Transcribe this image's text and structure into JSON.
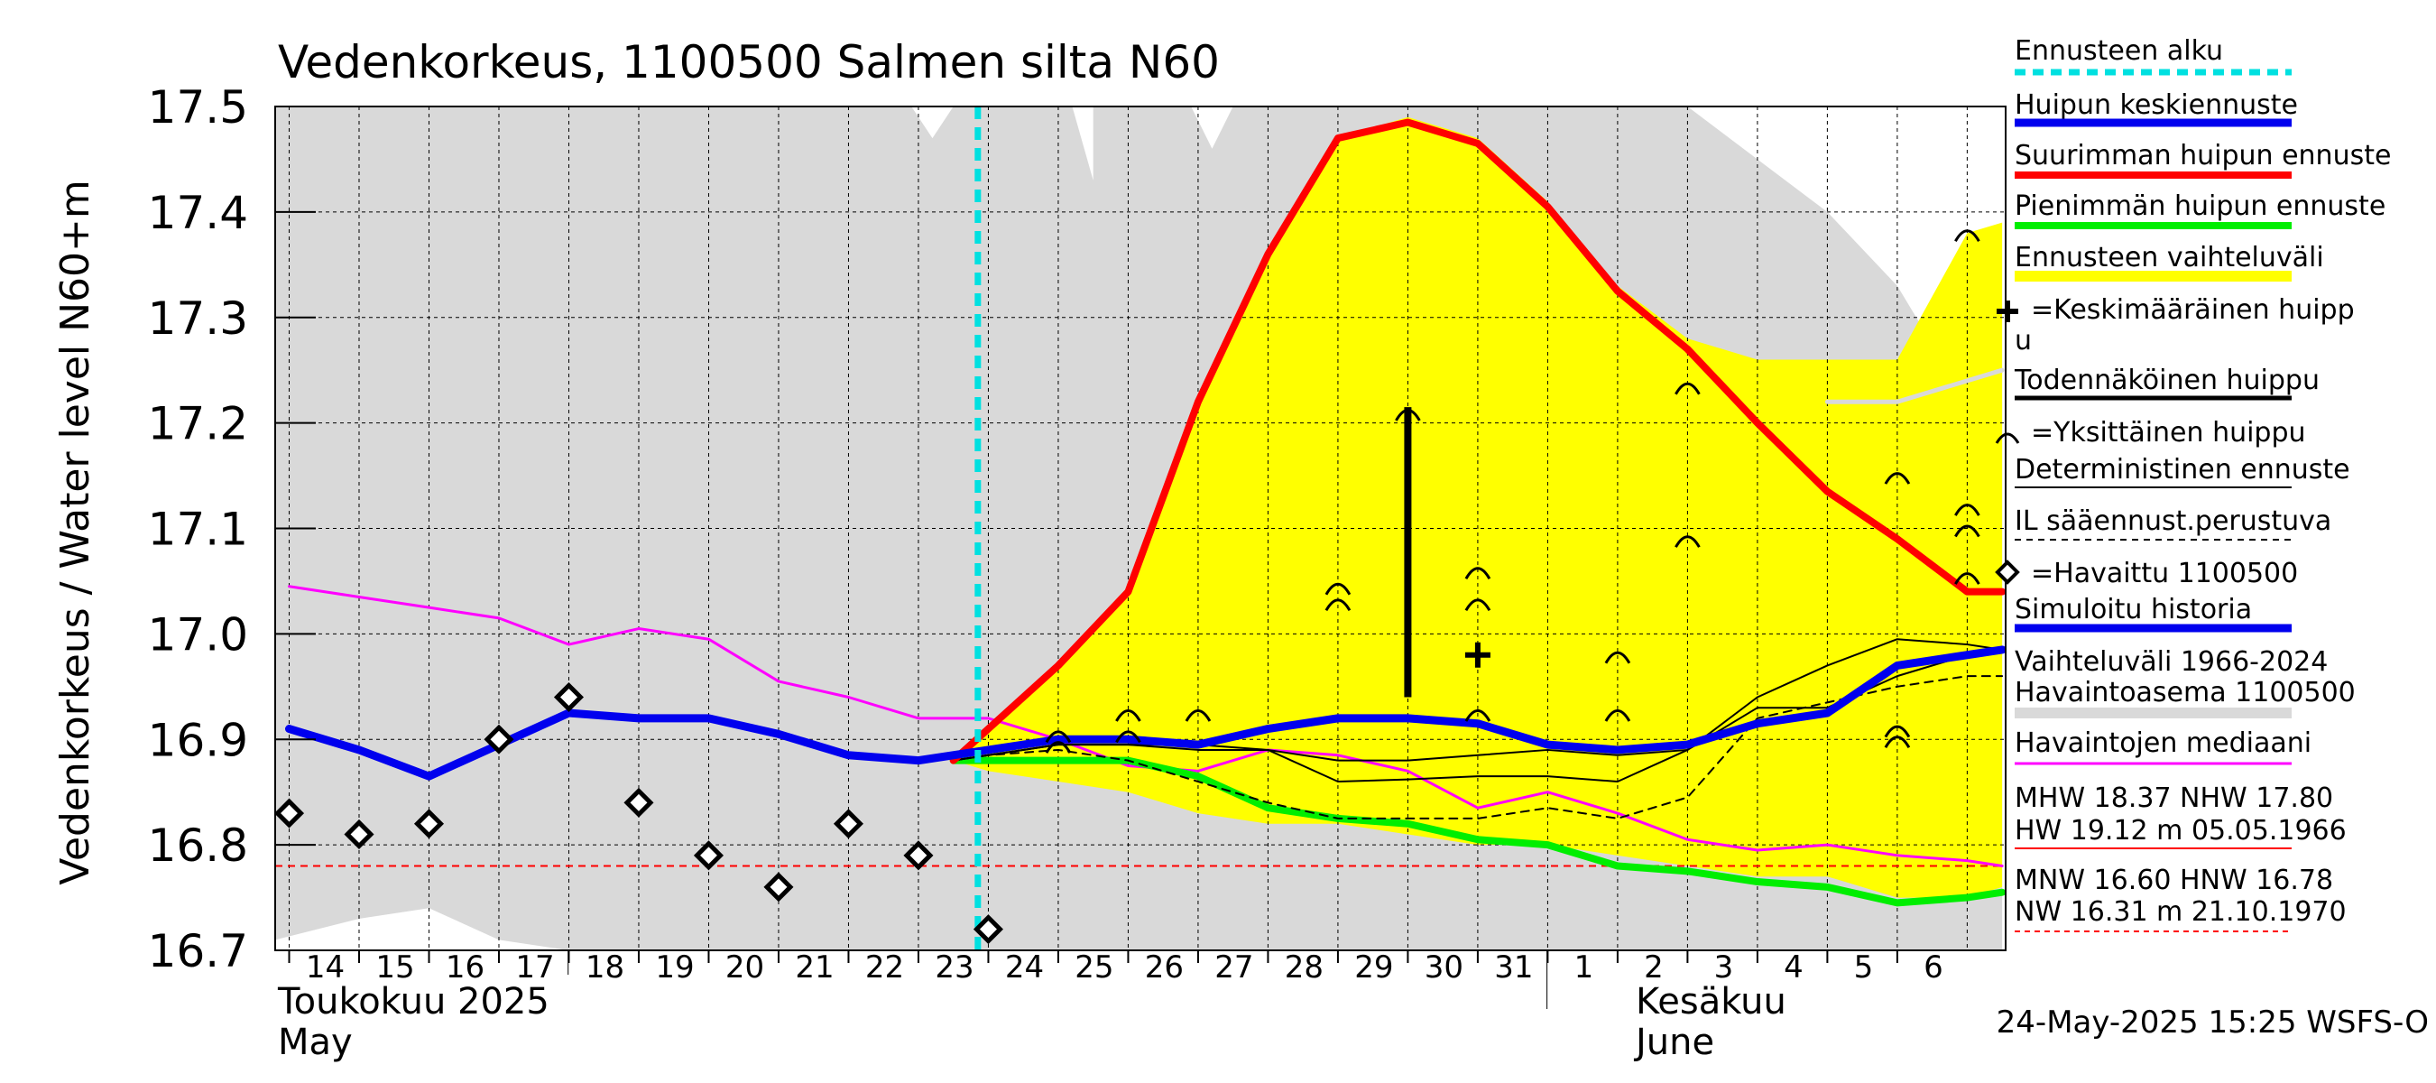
{
  "chart_data": {
    "type": "line",
    "title": "Vedenkorkeus, 1100500 Salmen silta N60",
    "ylabel": "Vedenkorkeus / Water level    N60+m",
    "ylim": [
      16.7,
      17.5
    ],
    "yticks": [
      16.7,
      16.8,
      16.9,
      17.0,
      17.1,
      17.2,
      17.3,
      17.4,
      17.5
    ],
    "ytick_labels": [
      "16.7",
      "16.8",
      "16.9",
      "17.0",
      "17.1",
      "17.2",
      "17.3",
      "17.4",
      "17.5"
    ],
    "x_days": [
      "14",
      "15",
      "16",
      "17",
      "18",
      "19",
      "20",
      "21",
      "22",
      "23",
      "24",
      "25",
      "26",
      "27",
      "28",
      "29",
      "30",
      "31",
      "1",
      "2",
      "3",
      "4",
      "5",
      "6"
    ],
    "month_labels": {
      "may_fi": "Toukokuu  2025",
      "may_en": "May",
      "june_fi": "Kesäkuu",
      "june_en": "June"
    },
    "forecast_start_day": 24,
    "footer": "24-May-2025 15:25 WSFS-O",
    "mnw_line": 16.78,
    "range_1966_2024": {
      "x": [
        13.8,
        16,
        17,
        18,
        23.5,
        24,
        25,
        25.3,
        26.5,
        27,
        28,
        29,
        30,
        31,
        32,
        33,
        34,
        35,
        36,
        37,
        38,
        38.5
      ],
      "upper": [
        17.5,
        17.5,
        17.5,
        17.5,
        17.5,
        17.5,
        17.5,
        17.5,
        17.5,
        17.5,
        17.5,
        17.5,
        17.5,
        17.5,
        17.5,
        17.5,
        17.5,
        17.45,
        17.4,
        17.33,
        17.22,
        17.22
      ],
      "x_low": [
        13.8,
        15,
        16,
        17,
        18,
        19,
        38.5
      ],
      "lower": [
        16.71,
        16.73,
        16.74,
        16.71,
        16.7,
        16.7,
        16.7
      ],
      "notch_x": [
        22.9,
        23.5,
        24.9,
        25.5,
        26.9,
        27.5
      ],
      "notch_y": [
        17.5,
        17.47,
        17.43,
        17.5,
        17.5,
        17.46
      ]
    },
    "forecast_band": {
      "x": [
        23.5,
        24,
        25,
        26,
        27,
        28,
        29,
        30,
        31,
        32,
        33,
        34,
        35,
        36,
        37,
        38,
        38.5
      ],
      "upper": [
        16.88,
        16.91,
        16.97,
        17.04,
        17.22,
        17.36,
        17.47,
        17.49,
        17.47,
        17.41,
        17.33,
        17.28,
        17.26,
        17.26,
        17.26,
        17.38,
        17.39
      ],
      "lower": [
        16.88,
        16.87,
        16.86,
        16.85,
        16.83,
        16.82,
        16.82,
        16.81,
        16.8,
        16.8,
        16.79,
        16.78,
        16.77,
        16.77,
        16.75,
        16.75,
        16.76
      ]
    },
    "series": [
      {
        "name": "Vaihteluväli 1966-2024 upper (gray line)",
        "color": "#d9d9d9",
        "width": 5,
        "x": [
          36,
          37,
          38,
          38.5
        ],
        "values": [
          17.22,
          17.22,
          17.24,
          17.25
        ]
      },
      {
        "name": "Havaintojen mediaani",
        "color": "#ff00ff",
        "width": 3,
        "x": [
          14,
          15,
          16,
          17,
          18,
          19,
          20,
          21,
          22,
          23,
          24,
          25,
          26,
          27,
          28,
          29,
          30,
          31,
          32,
          33,
          34,
          35,
          36,
          37,
          38,
          38.5
        ],
        "values": [
          17.045,
          17.035,
          17.025,
          17.015,
          16.99,
          17.005,
          16.995,
          16.955,
          16.94,
          16.92,
          16.92,
          16.9,
          16.875,
          16.87,
          16.89,
          16.885,
          16.87,
          16.835,
          16.85,
          16.83,
          16.805,
          16.795,
          16.8,
          16.79,
          16.785,
          16.78
        ]
      },
      {
        "name": "Pienimmän huipun ennuste",
        "color": "#00ee00",
        "width": 8,
        "x": [
          23.5,
          24,
          25,
          26,
          27,
          28,
          29,
          30,
          31,
          32,
          33,
          34,
          35,
          36,
          37,
          38,
          38.5
        ],
        "values": [
          16.88,
          16.88,
          16.88,
          16.88,
          16.865,
          16.835,
          16.825,
          16.82,
          16.805,
          16.8,
          16.78,
          16.775,
          16.765,
          16.76,
          16.745,
          16.75,
          16.755
        ]
      },
      {
        "name": "IL sääennust.perustuva",
        "color": "#000000",
        "width": 2,
        "dash": "9,7",
        "x": [
          23.5,
          24,
          25,
          26,
          27,
          28,
          29,
          30,
          31,
          32,
          33,
          34,
          35,
          36,
          37,
          38,
          38.5
        ],
        "values": [
          16.88,
          16.885,
          16.89,
          16.88,
          16.86,
          16.84,
          16.825,
          16.825,
          16.825,
          16.835,
          16.825,
          16.845,
          16.92,
          16.935,
          16.95,
          16.96,
          16.96
        ]
      },
      {
        "name": "Deterministinen ennuste 2",
        "color": "#000000",
        "width": 2,
        "x": [
          23.5,
          24,
          25,
          26,
          27,
          28,
          29,
          30,
          31,
          32,
          33,
          34,
          35,
          36,
          37,
          38,
          38.5
        ],
        "values": [
          16.88,
          16.885,
          16.895,
          16.895,
          16.895,
          16.89,
          16.86,
          16.862,
          16.865,
          16.865,
          16.86,
          16.89,
          16.94,
          16.97,
          16.995,
          16.99,
          16.985
        ]
      },
      {
        "name": "Deterministinen ennuste",
        "color": "#000000",
        "width": 2,
        "x": [
          23.5,
          24,
          25,
          26,
          27,
          28,
          29,
          30,
          31,
          32,
          33,
          34,
          35,
          36,
          37,
          38,
          38.5
        ],
        "values": [
          16.88,
          16.885,
          16.895,
          16.895,
          16.89,
          16.89,
          16.88,
          16.88,
          16.885,
          16.89,
          16.885,
          16.89,
          16.93,
          16.93,
          16.96,
          16.98,
          16.985
        ]
      },
      {
        "name": "Suurimman huipun ennuste",
        "color": "#ff0000",
        "width": 8,
        "x": [
          23.5,
          24,
          25,
          26,
          27,
          28,
          29,
          30,
          31,
          32,
          33,
          34,
          35,
          36,
          37,
          38,
          38.5
        ],
        "values": [
          16.88,
          16.91,
          16.97,
          17.04,
          17.22,
          17.36,
          17.47,
          17.485,
          17.465,
          17.405,
          17.325,
          17.27,
          17.2,
          17.135,
          17.09,
          17.04,
          17.04
        ]
      },
      {
        "name": "Simuloitu historia / Huipun keskiennuste",
        "color": "#0000ee",
        "width": 9,
        "x": [
          14,
          15,
          16,
          17,
          18,
          19,
          20,
          21,
          22,
          23,
          24,
          25,
          26,
          27,
          28,
          29,
          30,
          31,
          32,
          33,
          34,
          35,
          36,
          37,
          38,
          38.5
        ],
        "values": [
          16.91,
          16.89,
          16.865,
          16.895,
          16.925,
          16.92,
          16.92,
          16.905,
          16.885,
          16.88,
          16.89,
          16.9,
          16.9,
          16.895,
          16.91,
          16.92,
          16.92,
          16.915,
          16.895,
          16.89,
          16.895,
          16.915,
          16.925,
          16.97,
          16.98,
          16.985
        ]
      }
    ],
    "observed": {
      "name": "Havaittu 1100500",
      "x": [
        14,
        15,
        16,
        17,
        18,
        19,
        20,
        21,
        22,
        23,
        24
      ],
      "values": [
        16.83,
        16.81,
        16.82,
        16.9,
        16.94,
        16.84,
        16.79,
        16.76,
        16.82,
        16.79,
        16.72
      ]
    },
    "single_peaks": {
      "x": [
        25,
        25,
        26,
        26,
        27,
        29,
        29,
        30,
        31,
        31,
        31,
        33,
        33,
        34,
        34,
        37,
        37,
        37,
        38,
        38,
        38,
        38
      ],
      "values": [
        16.895,
        16.905,
        16.905,
        16.925,
        16.925,
        17.03,
        17.045,
        17.21,
        16.925,
        17.03,
        17.06,
        16.925,
        16.98,
        17.235,
        17.09,
        16.9,
        16.91,
        17.15,
        17.1,
        17.12,
        17.055,
        17.38
      ]
    },
    "probable_peak": {
      "x": 30,
      "low": 16.94,
      "high": 17.215
    },
    "mean_peak": {
      "x": 31,
      "value": 16.98
    },
    "legend": [
      "Ennusteen alku",
      "Huipun keskiennuste",
      "Suurimman huipun ennuste",
      "Pienimmän huipun ennuste",
      "Ennusteen vaihteluväli",
      "=Keskimääräinen huipp",
      "u",
      "Todennäköinen huippu",
      "=Yksittäinen huippu",
      "Deterministinen ennuste",
      "IL sääennust.perustuva",
      "=Havaittu 1100500",
      "Simuloitu historia",
      "Vaihteluväli 1966-2024",
      " Havaintoasema 1100500",
      "Havaintojen mediaani",
      "MHW  18.37 NHW  17.80",
      "HW  19.12 m 05.05.1966",
      "MNW  16.60 HNW  16.78",
      "NW  16.31 m 21.10.1970"
    ],
    "colors": {
      "cyan": "#00e0e0",
      "blue": "#0000ee",
      "red": "#ff0000",
      "green": "#00ee00",
      "yellow": "#ffff00",
      "gray": "#d9d9d9",
      "magenta": "#ff00ff",
      "black": "#000000"
    }
  }
}
